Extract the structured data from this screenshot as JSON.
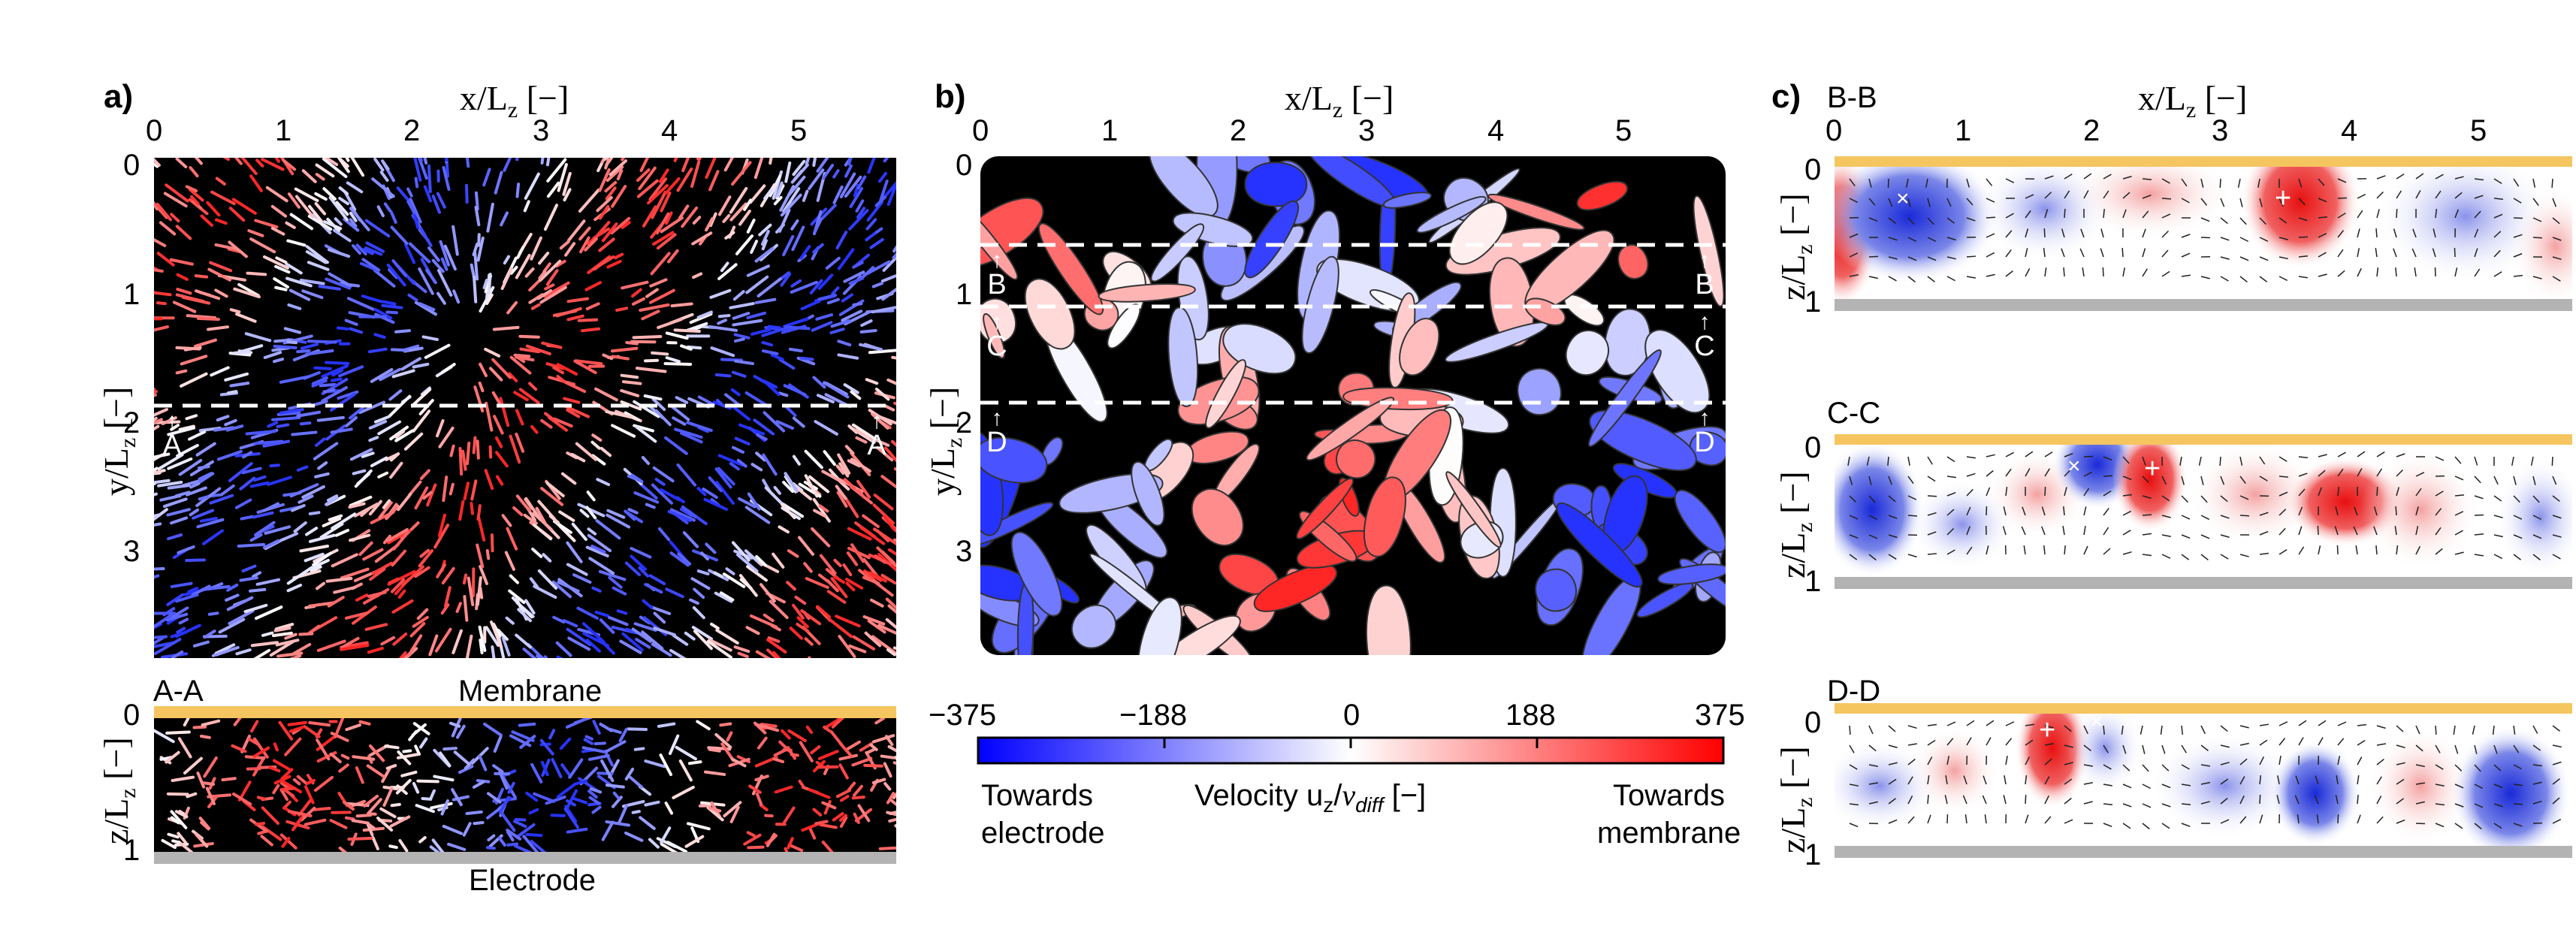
{
  "panels": {
    "a": {
      "letter": "a)",
      "x_axis_title": "x/L",
      "x_axis_sub": "z",
      "x_axis_unit": " [−]",
      "x_ticks": [
        "0",
        "1",
        "2",
        "3",
        "4",
        "5"
      ],
      "y_axis_title": "y/L",
      "y_axis_sub": "z",
      "y_axis_unit": " [−]",
      "y_ticks": [
        "0",
        "1",
        "2",
        "3"
      ],
      "cut_label": "A",
      "section": {
        "label": "A-A",
        "top_label": "Membrane",
        "bottom_label": "Electrode",
        "z_ticks": [
          "0",
          "1"
        ],
        "z_axis_title": "z/L",
        "z_axis_sub": "z",
        "z_axis_unit": " [−]"
      }
    },
    "b": {
      "letter": "b)",
      "x_axis_title": "x/L",
      "x_axis_sub": "z",
      "x_axis_unit": " [−]",
      "x_ticks": [
        "0",
        "1",
        "2",
        "3",
        "4",
        "5"
      ],
      "y_axis_title": "y/L",
      "y_axis_sub": "z",
      "y_axis_unit": " [−]",
      "y_ticks": [
        "0",
        "1",
        "2",
        "3"
      ],
      "cut_labels": [
        "B",
        "C",
        "D"
      ],
      "colorbar": {
        "ticks": [
          "−375",
          "−188",
          "0",
          "188",
          "375"
        ],
        "left_label_1": "Towards",
        "left_label_2": "electrode",
        "center_label": "Velocity u",
        "center_sub": "z",
        "center_div": "/",
        "center_v": "v",
        "center_vsub": "diff",
        "center_unit": " [−]",
        "right_label_1": "Towards",
        "right_label_2": "membrane",
        "colors": {
          "neg": "#1a1aff",
          "mid": "#ffffff",
          "pos": "#ff1a1a"
        }
      }
    },
    "c": {
      "letter": "c)",
      "x_axis_title": "x/L",
      "x_axis_sub": "z",
      "x_axis_unit": " [−]",
      "x_ticks": [
        "0",
        "1",
        "2",
        "3",
        "4",
        "5"
      ],
      "z_axis_title": "z/L",
      "z_axis_sub": "z",
      "z_axis_unit": " [−]",
      "z_ticks": [
        "0",
        "1"
      ],
      "sections": [
        {
          "label": "B-B"
        },
        {
          "label": "C-C"
        },
        {
          "label": "D-D"
        }
      ],
      "marker_x": "×",
      "marker_plus": "+"
    }
  },
  "colors": {
    "membrane": "#f5c560",
    "electrode": "#b3b3b3",
    "negative": "#2a3ae0",
    "positive": "#e0181a",
    "background": "#000000"
  }
}
